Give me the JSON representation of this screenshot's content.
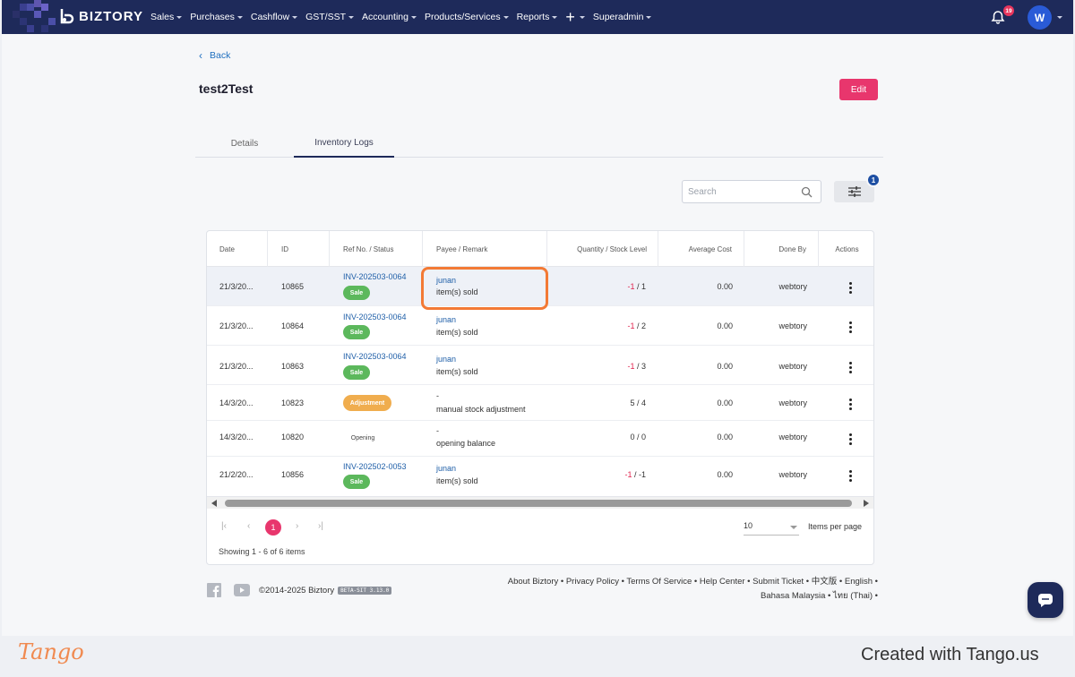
{
  "app": {
    "brand": "BIZTORY",
    "notifications_count": "19",
    "user_initial": "W"
  },
  "nav": {
    "items": [
      "Sales",
      "Purchases",
      "Cashflow",
      "GST/SST",
      "Accounting",
      "Products/Services",
      "Reports",
      "Superadmin"
    ]
  },
  "page": {
    "back_label": "Back",
    "title": "test2Test",
    "edit_label": "Edit"
  },
  "tabs": [
    {
      "label": "Details",
      "active": false
    },
    {
      "label": "Inventory Logs",
      "active": true
    }
  ],
  "toolbar": {
    "search_placeholder": "Search",
    "filter_count": "1"
  },
  "table": {
    "columns": [
      "Date",
      "ID",
      "Ref No. / Status",
      "Payee / Remark",
      "Quantity / Stock Level",
      "Average Cost",
      "Done By",
      "Actions"
    ],
    "rows": [
      {
        "date": "21/3/20...",
        "id": "10865",
        "ref": "INV-202503-0064",
        "status": "Sale",
        "payee": "junan",
        "remark": "item(s) sold",
        "qty": "-1",
        "stock": "/ 1",
        "avg_cost": "0.00",
        "done_by": "webtory"
      },
      {
        "date": "21/3/20...",
        "id": "10864",
        "ref": "INV-202503-0064",
        "status": "Sale",
        "payee": "junan",
        "remark": "item(s) sold",
        "qty": "-1",
        "stock": "/ 2",
        "avg_cost": "0.00",
        "done_by": "webtory"
      },
      {
        "date": "21/3/20...",
        "id": "10863",
        "ref": "INV-202503-0064",
        "status": "Sale",
        "payee": "junan",
        "remark": "item(s) sold",
        "qty": "-1",
        "stock": "/ 3",
        "avg_cost": "0.00",
        "done_by": "webtory"
      },
      {
        "date": "14/3/20...",
        "id": "10823",
        "ref": "",
        "status": "Adjustment",
        "payee": "-",
        "remark": "manual stock adjustment",
        "qty": "5",
        "stock": "/ 4",
        "avg_cost": "0.00",
        "done_by": "webtory"
      },
      {
        "date": "14/3/20...",
        "id": "10820",
        "ref": "",
        "status": "Opening",
        "payee": "-",
        "remark": "opening balance",
        "qty": "0",
        "stock": "/ 0",
        "avg_cost": "0.00",
        "done_by": "webtory"
      },
      {
        "date": "21/2/20...",
        "id": "10856",
        "ref": "INV-202502-0053",
        "status": "Sale",
        "payee": "junan",
        "remark": "item(s) sold",
        "qty": "-1",
        "stock": "/ -1",
        "avg_cost": "0.00",
        "done_by": "webtory"
      }
    ]
  },
  "pagination": {
    "current_page": "1",
    "per_page": "10",
    "per_page_label": "Items per page",
    "showing": "Showing 1 - 6 of 6 items"
  },
  "footer": {
    "copyright": "©2014-2025 Biztory",
    "version": "BETA-SIT 3.13.0",
    "links_line1": "About Biztory • Privacy Policy • Terms Of Service • Help Center • Submit Ticket • 中文版 • English •",
    "links_line2": "Bahasa Malaysia • ไทย (Thai) •"
  },
  "tango": {
    "logo": "Tango",
    "credit": "Created with Tango.us"
  },
  "colors": {
    "navbar": "#1e2a5a",
    "accent": "#e8366d",
    "link": "#1f5fa8",
    "sale": "#5cb85c",
    "adjustment": "#f0ad4e",
    "highlight": "#f37a35"
  }
}
